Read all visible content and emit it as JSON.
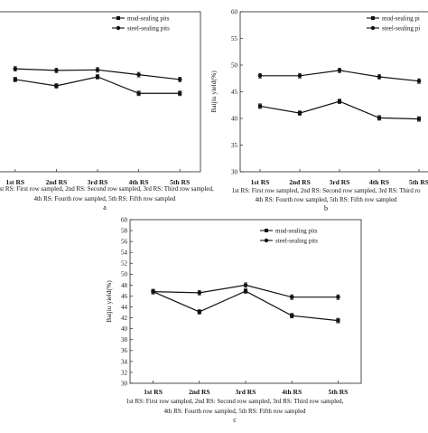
{
  "chart_data": [
    {
      "type": "line",
      "panel_label": "a",
      "categories": [
        "1st RS",
        "2nd RS",
        "3rd RS",
        "4th RS",
        "5th RS"
      ],
      "ylabel": "",
      "ylim": [
        30,
        60
      ],
      "series": [
        {
          "name": "mud-sealing pits",
          "marker": "square",
          "values": [
            47.3,
            46.1,
            47.8,
            44.7,
            44.7
          ]
        },
        {
          "name": "steel-sealing pits",
          "marker": "circle",
          "values": [
            49.3,
            49.0,
            49.1,
            48.2,
            47.3
          ]
        }
      ],
      "footnote": [
        "irst RS: First row sampled, 2nd RS: Second row sampled, 3rd RS: Third row sampled,",
        "4th RS: Fourth row sampled, 5th RS: Fifth row sampled"
      ]
    },
    {
      "type": "line",
      "panel_label": "b",
      "categories": [
        "1st RS",
        "2nd RS",
        "3rd RS",
        "4th RS",
        "5th RS"
      ],
      "ylabel": "Baijiu yield(%)",
      "yticks": [
        30,
        35,
        40,
        45,
        50,
        55,
        60
      ],
      "ylim": [
        30,
        60
      ],
      "series": [
        {
          "name": "mud-sealing pi",
          "marker": "square",
          "values": [
            42.3,
            41.0,
            43.2,
            40.1,
            39.9
          ]
        },
        {
          "name": "steel-sealing pi",
          "marker": "circle",
          "values": [
            48.0,
            48.0,
            49.0,
            47.8,
            47.0
          ]
        }
      ],
      "footnote": [
        "1st RS: First row sampled, 2nd RS: Second row sampled, 3rd RS: Third ro",
        "4th RS: Fourth row sampled, 5th RS: Fifth row sampled"
      ]
    },
    {
      "type": "line",
      "panel_label": "c",
      "categories": [
        "1st RS",
        "2nd RS",
        "3rd RS",
        "4th RS",
        "5th RS"
      ],
      "ylabel": "Baijiu yield(%)",
      "yticks": [
        30,
        32,
        34,
        36,
        38,
        40,
        42,
        44,
        46,
        48,
        50,
        52,
        54,
        56,
        58,
        60
      ],
      "ylim": [
        30,
        60
      ],
      "series": [
        {
          "name": "mud-sealing pits",
          "marker": "square",
          "values": [
            46.8,
            43.1,
            46.9,
            42.4,
            41.5
          ]
        },
        {
          "name": "steel-sealing pits",
          "marker": "circle",
          "values": [
            46.8,
            46.6,
            48.0,
            45.8,
            45.8
          ]
        }
      ],
      "footnote": [
        "1st RS: First row sampled, 2nd RS: Second row sampled, 3rd RS: Third row sampled,",
        "4th RS: Fourth row sampled, 5th RS: Fifth row sampled"
      ]
    }
  ]
}
